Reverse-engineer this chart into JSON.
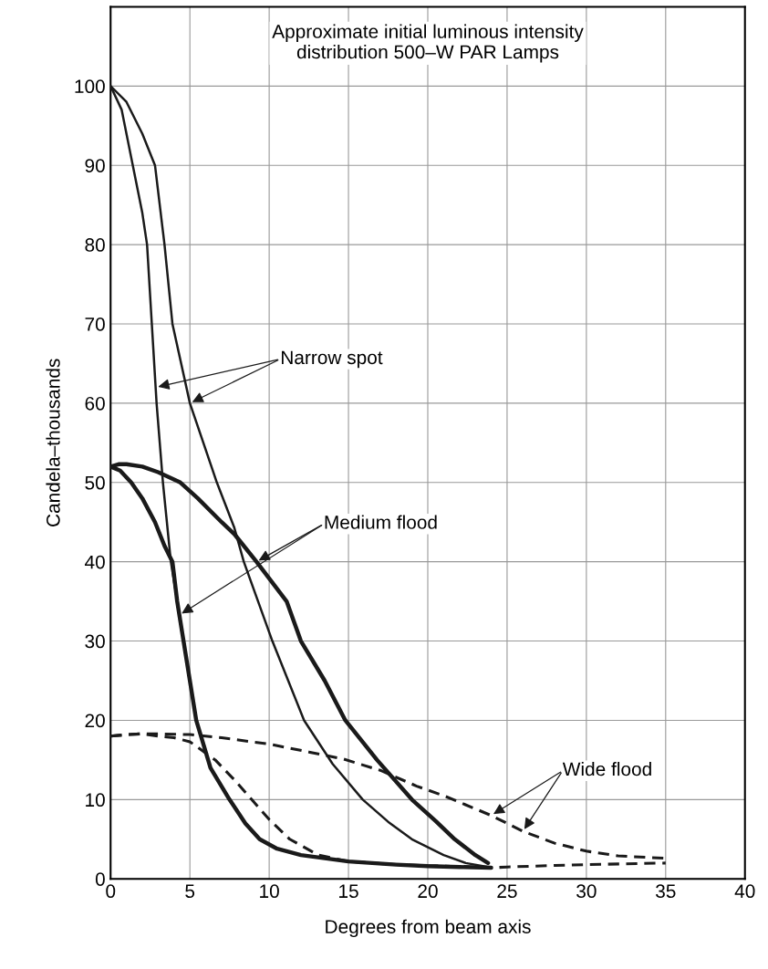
{
  "chart_data": {
    "type": "line",
    "title": "Approximate initial luminous intensity\ndistribution 500–W PAR Lamps",
    "xlabel": "Degrees from beam axis",
    "ylabel": "Candela–thousands",
    "xlim": [
      0,
      40
    ],
    "ylim": [
      0,
      110
    ],
    "xticks": [
      0,
      5,
      10,
      15,
      20,
      25,
      30,
      35,
      40
    ],
    "yticks": [
      0,
      10,
      20,
      30,
      40,
      50,
      60,
      70,
      80,
      90,
      100
    ],
    "grid": true,
    "legend": false,
    "marker": "none",
    "series": [
      {
        "color": "#1a1a1a",
        "line_style": "solid",
        "x": [
          0,
          0.7,
          1.4,
          2.0,
          2.3,
          2.6,
          2.9,
          3.3,
          3.8,
          4.2,
          4.6,
          5.4,
          6.3,
          7.5,
          8.5,
          9.4,
          10.5,
          12,
          15,
          18,
          20,
          22,
          24
        ],
        "values": [
          100,
          97,
          90,
          84,
          80,
          70,
          60,
          50,
          40,
          35,
          30,
          20,
          14,
          10,
          7,
          5,
          3.8,
          3,
          2.2,
          1.8,
          1.6,
          1.5,
          1.4
        ]
      },
      {
        "color": "#1a1a1a",
        "line_style": "solid",
        "x": [
          0,
          1,
          2,
          2.8,
          3.4,
          3.9,
          5.0,
          6.7,
          7.8,
          8.4,
          10.2,
          12.2,
          14,
          15.9,
          17.5,
          19,
          21,
          22.4,
          23.8
        ],
        "values": [
          100,
          98,
          94,
          90,
          80,
          70,
          60,
          50,
          44.3,
          40,
          30,
          20,
          14.5,
          10,
          7.2,
          5,
          3,
          2,
          1.5
        ]
      },
      {
        "color": "#1a1a1a",
        "line_style": "solid",
        "x": [
          0,
          0.6,
          1.3,
          2.0,
          2.8,
          3.4,
          3.9,
          4.2,
          4.6,
          5.4,
          6.3,
          7.5,
          8.5,
          9.4,
          10.5,
          12,
          15,
          18,
          20,
          22,
          24
        ],
        "values": [
          52,
          51.5,
          50,
          48,
          45,
          42,
          40,
          35,
          30,
          20,
          14,
          10,
          7,
          5,
          3.8,
          3,
          2.2,
          1.8,
          1.6,
          1.5,
          1.4
        ]
      },
      {
        "color": "#1a1a1a",
        "line_style": "solid",
        "x": [
          0,
          0.5,
          1.0,
          2.0,
          3.0,
          4.4,
          5.5,
          7.0,
          7.8,
          9.2,
          11.1,
          12.0,
          13.5,
          14.8,
          16.8,
          19.0,
          20.5,
          21.7,
          23.0,
          23.8
        ],
        "values": [
          52,
          52.3,
          52.3,
          52,
          51.3,
          50,
          48,
          45,
          43.5,
          40,
          35,
          30,
          25,
          20,
          15,
          10,
          7.3,
          5,
          3,
          2
        ]
      },
      {
        "color": "#1a1a1a",
        "line_style": "dashed",
        "x": [
          0,
          1,
          2,
          3,
          4,
          5,
          6.6,
          7.8,
          8.9,
          10,
          11.3,
          13.1,
          15,
          18,
          21,
          24,
          25,
          28,
          30,
          35
        ],
        "values": [
          18,
          18.2,
          18.3,
          18,
          17.8,
          17.3,
          15,
          12.5,
          10,
          7.5,
          5,
          3,
          2.2,
          1.8,
          1.6,
          1.4,
          1.5,
          1.7,
          1.8,
          2.0
        ]
      },
      {
        "color": "#1a1a1a",
        "line_style": "dashed",
        "x": [
          0,
          1,
          2,
          3,
          5,
          7,
          10,
          12.5,
          14.7,
          17,
          19.3,
          21,
          24,
          26,
          28,
          30,
          32,
          35
        ],
        "values": [
          18,
          18.2,
          18.3,
          18.3,
          18.2,
          17.8,
          17,
          16,
          15.1,
          13.7,
          11.7,
          10.5,
          8,
          6,
          4.5,
          3.5,
          2.9,
          2.6
        ]
      }
    ],
    "annotations": [
      {
        "text": "Narrow spot",
        "x": 2.85,
        "y": 62
      },
      {
        "text": "Medium flood",
        "x": 4.35,
        "y": 33.3
      },
      {
        "text": "Wide flood",
        "x": 24,
        "y": 8
      }
    ]
  }
}
